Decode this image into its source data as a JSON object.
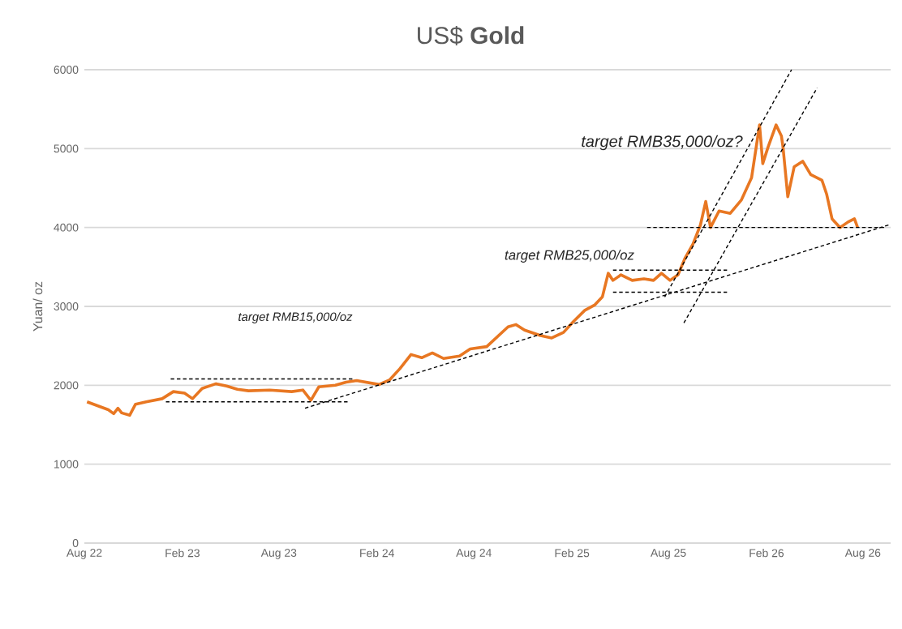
{
  "chart_data": {
    "type": "line",
    "title": "US$ **Gold**",
    "ylabel": "Yuan/ oz",
    "annotations": [
      "target RMB35,000/oz?",
      "target RMB25,000/oz",
      "target RMB15,000/oz"
    ],
    "xlim": [
      "2022-08-01",
      "2026-09-22"
    ],
    "ylim": [
      0,
      6000
    ],
    "xticks": [
      {
        "value": "2022-08-01",
        "label": "Aug 22"
      },
      {
        "value": "2023-02-01",
        "label": "Feb 23"
      },
      {
        "value": "2023-08-01",
        "label": "Aug 23"
      },
      {
        "value": "2024-02-01",
        "label": "Feb 24"
      },
      {
        "value": "2024-08-01",
        "label": "Aug 24"
      },
      {
        "value": "2025-02-01",
        "label": "Feb 25"
      },
      {
        "value": "2025-08-01",
        "label": "Aug 25"
      },
      {
        "value": "2026-02-01",
        "label": "Feb 26"
      },
      {
        "value": "2026-08-01",
        "label": "Aug 26"
      }
    ],
    "yticks": [
      0,
      1000,
      2000,
      3000,
      4000,
      5000,
      6000
    ],
    "grid": "y",
    "marker": "none",
    "series": [
      {
        "color": "#e87722",
        "line_style": "solid",
        "x": [
          "2022-08-06",
          "2022-09-15",
          "2022-09-25",
          "2022-10-03",
          "2022-10-10",
          "2022-10-25",
          "2022-11-05",
          "2022-11-25",
          "2022-12-25",
          "2023-01-15",
          "2023-02-05",
          "2023-02-20",
          "2023-03-10",
          "2023-04-05",
          "2023-04-25",
          "2023-05-15",
          "2023-06-05",
          "2023-07-15",
          "2023-08-25",
          "2023-09-15",
          "2023-09-30",
          "2023-10-15",
          "2023-11-15",
          "2023-12-05",
          "2023-12-25",
          "2024-02-05",
          "2024-02-25",
          "2024-03-15",
          "2024-04-05",
          "2024-04-25",
          "2024-05-15",
          "2024-06-05",
          "2024-07-05",
          "2024-07-25",
          "2024-08-25",
          "2024-10-04",
          "2024-10-19",
          "2024-11-04",
          "2024-12-04",
          "2024-12-25",
          "2025-01-16",
          "2025-02-04",
          "2025-02-25",
          "2025-03-16",
          "2025-03-30",
          "2025-04-10",
          "2025-04-19",
          "2025-05-04",
          "2025-05-25",
          "2025-06-16",
          "2025-07-04",
          "2025-07-19",
          "2025-08-04",
          "2025-08-19",
          "2025-09-01",
          "2025-09-16",
          "2025-09-30",
          "2025-10-10",
          "2025-10-19",
          "2025-11-04",
          "2025-11-25",
          "2025-12-16",
          "2026-01-04",
          "2026-01-19",
          "2026-01-25",
          "2026-02-04",
          "2026-02-19",
          "2026-03-01",
          "2026-03-04",
          "2026-03-13",
          "2026-03-25",
          "2026-04-10",
          "2026-04-25",
          "2026-05-16",
          "2026-05-25",
          "2026-06-04",
          "2026-06-19",
          "2026-07-04",
          "2026-07-16",
          "2026-07-22"
        ],
        "values": [
          1790,
          1690,
          1640,
          1710,
          1650,
          1620,
          1760,
          1790,
          1830,
          1920,
          1900,
          1830,
          1960,
          2020,
          1990,
          1950,
          1930,
          1940,
          1920,
          1940,
          1810,
          1980,
          2000,
          2040,
          2060,
          2010,
          2070,
          2210,
          2390,
          2350,
          2410,
          2340,
          2370,
          2460,
          2490,
          2740,
          2770,
          2700,
          2630,
          2600,
          2670,
          2810,
          2950,
          3020,
          3120,
          3420,
          3330,
          3400,
          3330,
          3350,
          3330,
          3420,
          3330,
          3400,
          3610,
          3790,
          4030,
          4330,
          4000,
          4210,
          4180,
          4350,
          4630,
          5300,
          4810,
          5020,
          5300,
          5160,
          5020,
          4390,
          4770,
          4840,
          4670,
          4600,
          4420,
          4110,
          4000,
          4070,
          4110,
          4000
        ]
      },
      {
        "type": "line",
        "color": "#000000",
        "line_style": "dashed",
        "x": [
          "2023-01-10",
          "2023-12-19"
        ],
        "values": [
          2080,
          2080
        ]
      },
      {
        "type": "line",
        "color": "#000000",
        "line_style": "dashed",
        "x": [
          "2023-01-01",
          "2023-12-10"
        ],
        "values": [
          1790,
          1790
        ]
      },
      {
        "type": "line",
        "color": "#000000",
        "line_style": "dashed",
        "x": [
          "2023-09-19",
          "2026-09-22"
        ],
        "values": [
          1710,
          4040
        ]
      },
      {
        "type": "line",
        "color": "#000000",
        "line_style": "dashed",
        "x": [
          "2025-04-19",
          "2025-11-19"
        ],
        "values": [
          3460,
          3460
        ]
      },
      {
        "type": "line",
        "color": "#000000",
        "line_style": "dashed",
        "x": [
          "2025-04-19",
          "2025-11-19"
        ],
        "values": [
          3180,
          3180
        ]
      },
      {
        "type": "line",
        "color": "#000000",
        "line_style": "dashed",
        "x": [
          "2025-06-22",
          "2026-09-10"
        ],
        "values": [
          4000,
          4000
        ]
      },
      {
        "type": "line",
        "color": "#000000",
        "line_style": "dashed",
        "x": [
          "2025-07-25",
          "2026-03-20"
        ],
        "values": [
          3120,
          6000
        ]
      },
      {
        "type": "line",
        "color": "#000000",
        "line_style": "dashed",
        "x": [
          "2025-08-30",
          "2026-05-07"
        ],
        "values": [
          2790,
          5770
        ]
      }
    ]
  }
}
